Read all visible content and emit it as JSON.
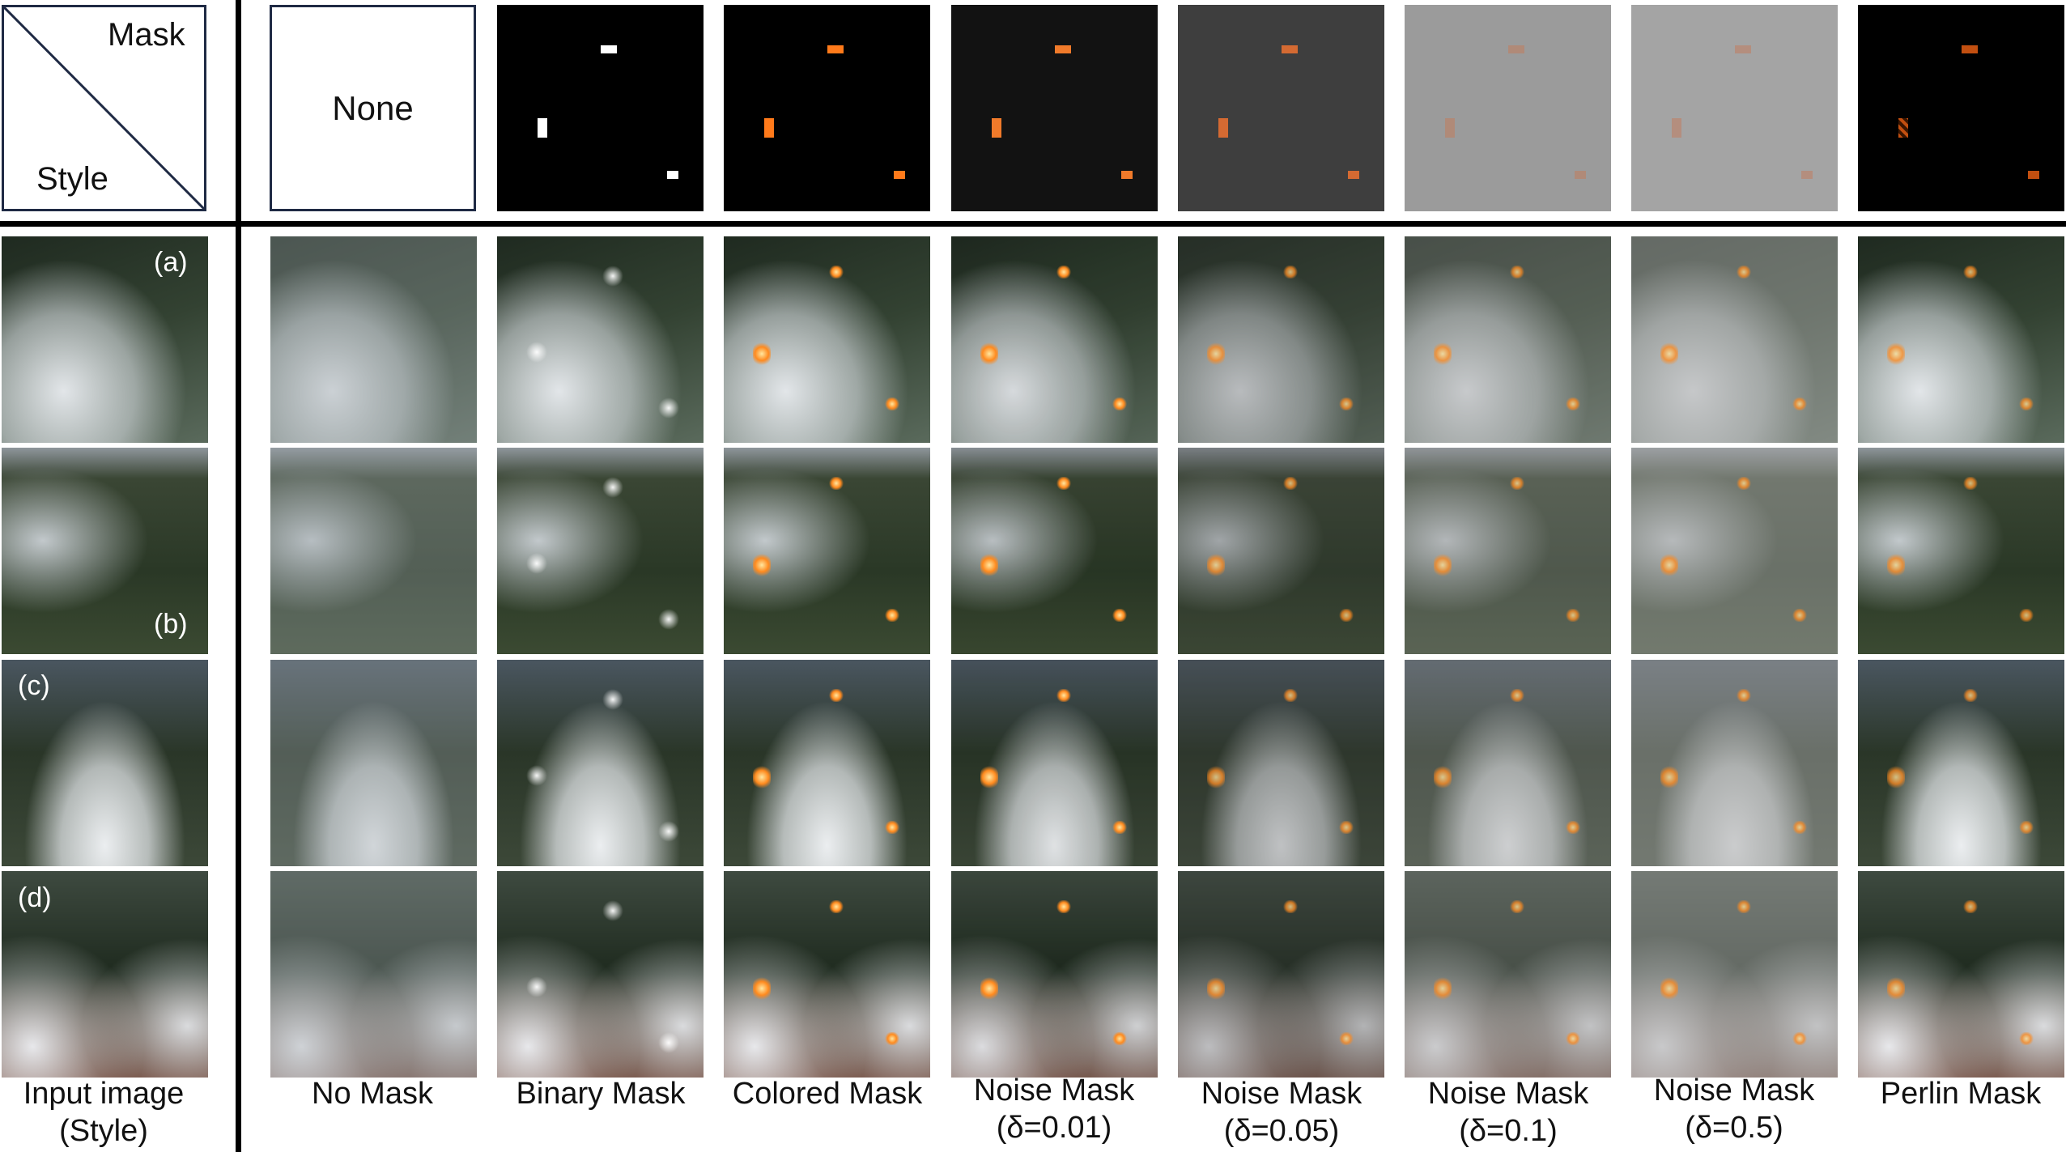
{
  "corner": {
    "mask_label": "Mask",
    "style_label": "Style"
  },
  "none_label": "None",
  "row_labels": [
    "(a)",
    "(b)",
    "(c)",
    "(d)"
  ],
  "captions": [
    {
      "line1": "Input image",
      "line2": "(Style)"
    },
    {
      "line1": "No Mask",
      "line2": ""
    },
    {
      "line1": "Binary Mask",
      "line2": ""
    },
    {
      "line1": "Colored Mask",
      "line2": ""
    },
    {
      "line1": "Noise Mask",
      "line2": "(δ=0.01)"
    },
    {
      "line1": "Noise Mask",
      "line2": "(δ=0.05)"
    },
    {
      "line1": "Noise Mask",
      "line2": "(δ=0.1)"
    },
    {
      "line1": "Noise Mask",
      "line2": "(δ=0.5)"
    },
    {
      "line1": "Perlin Mask",
      "line2": ""
    }
  ],
  "colors": {
    "fire": "#ff7a1a",
    "separator": "#000000",
    "frame": "#1f2a44"
  }
}
